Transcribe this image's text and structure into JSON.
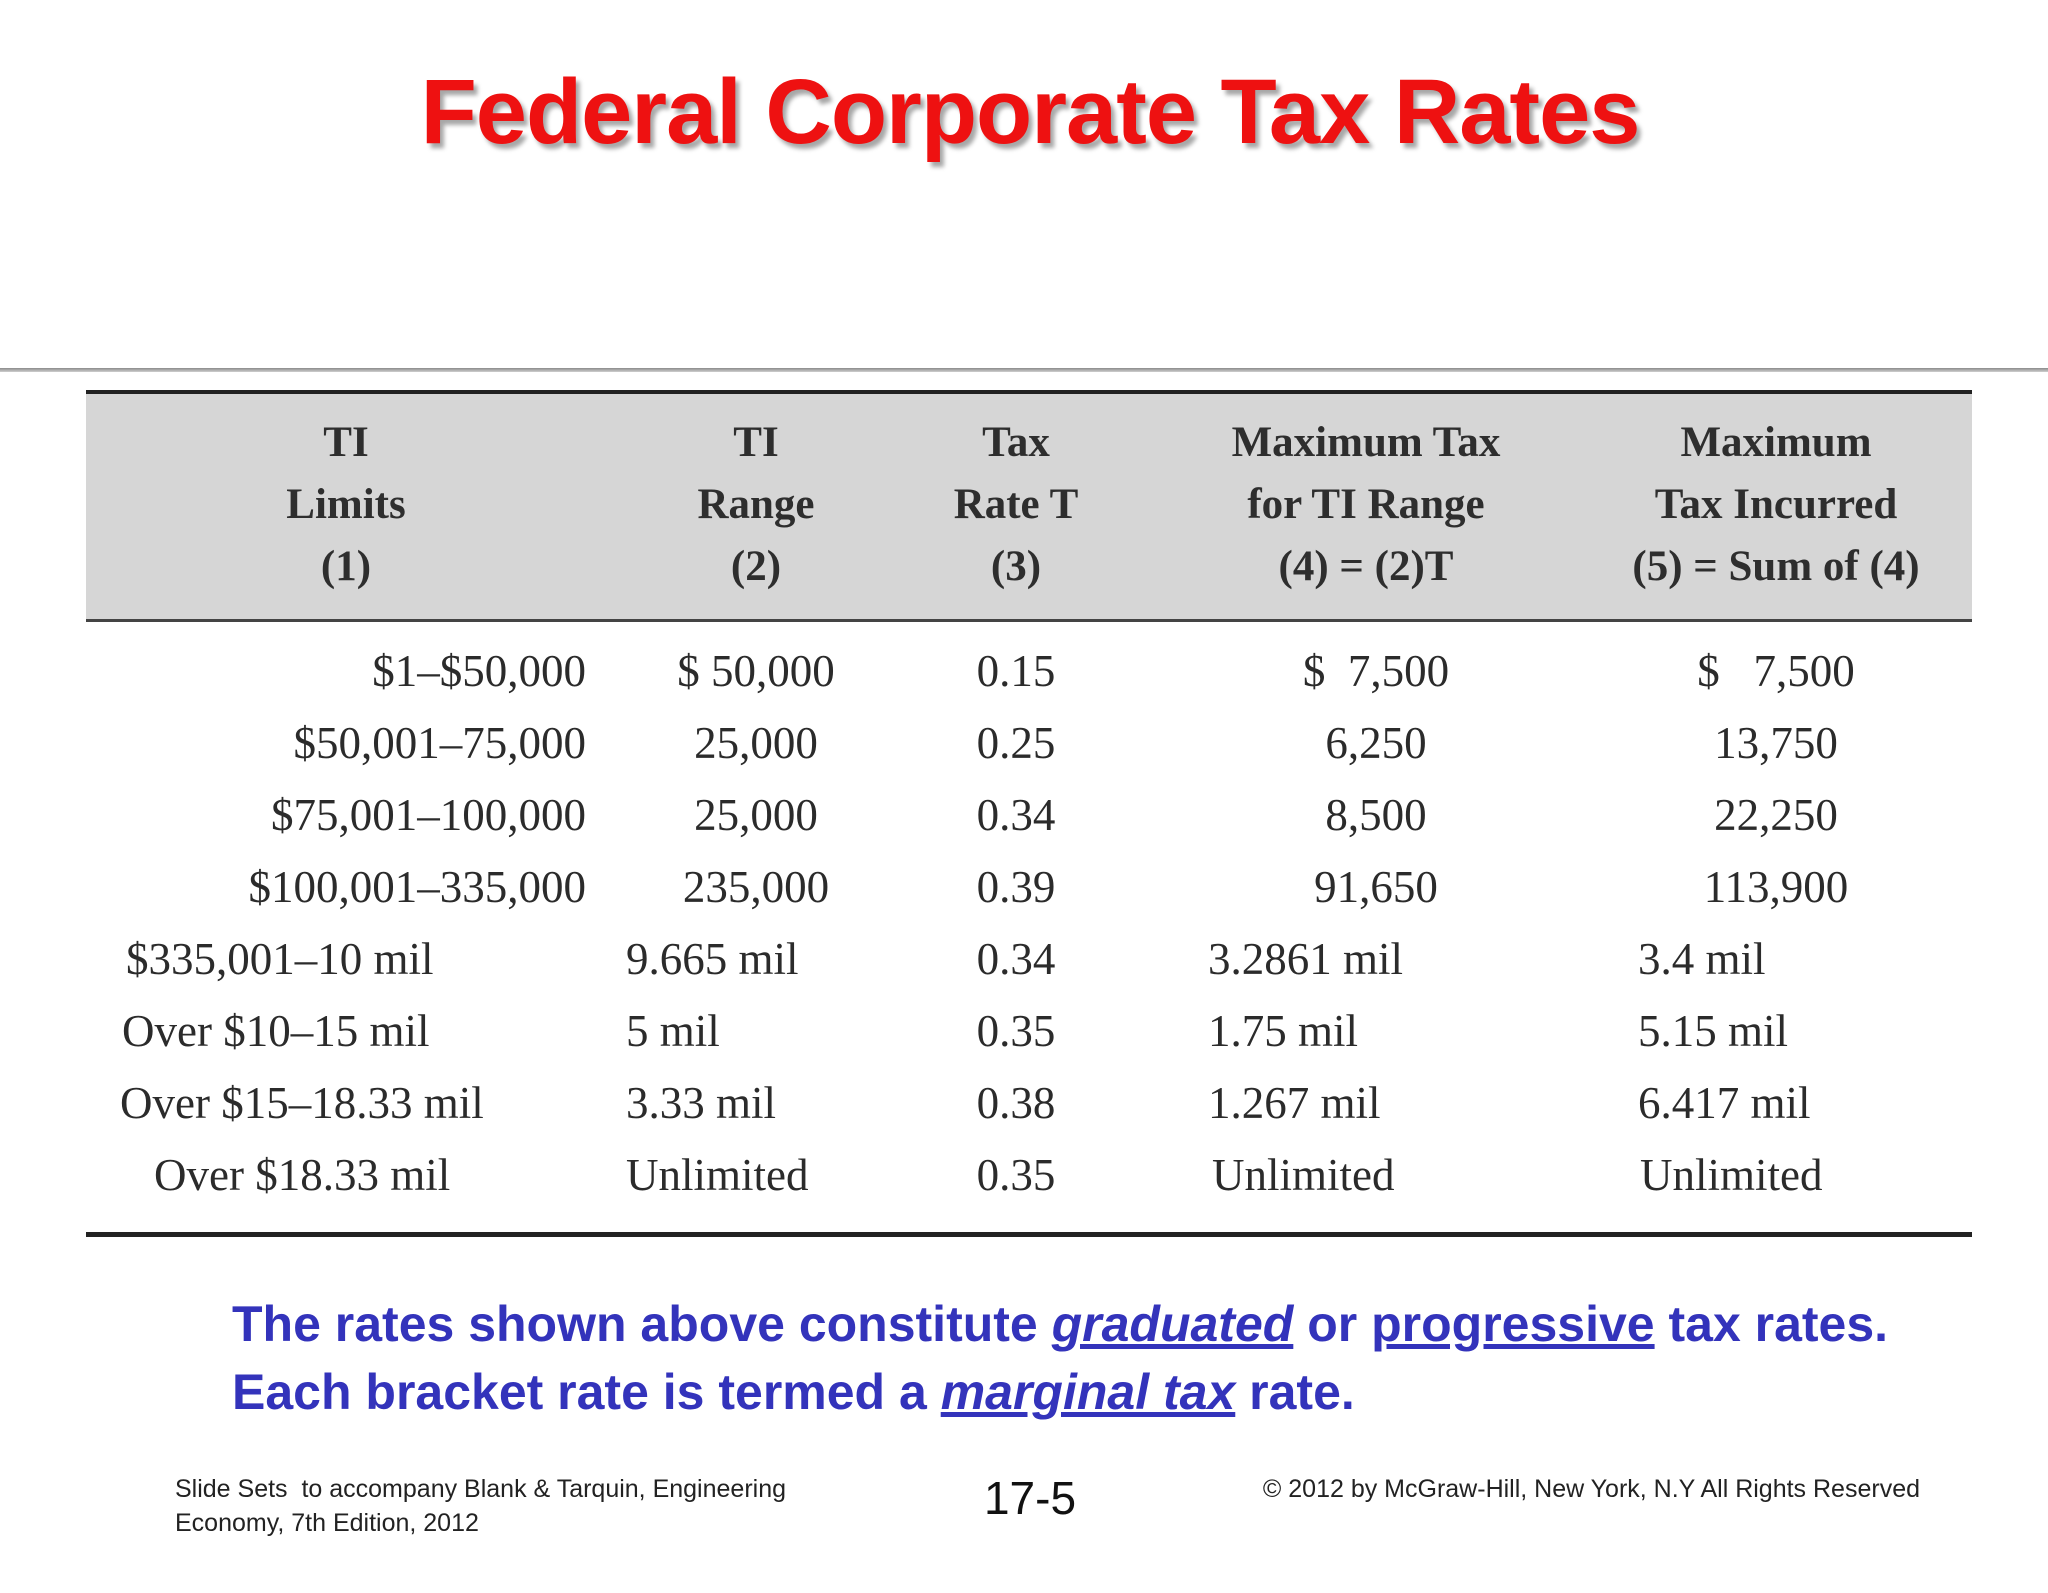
{
  "title": "Federal Corporate Tax Rates",
  "table": {
    "headers": [
      [
        "TI",
        "Limits",
        "(1)"
      ],
      [
        "TI",
        "Range",
        "(2)"
      ],
      [
        "Tax",
        "Rate T",
        "(3)"
      ],
      [
        "Maximum Tax",
        "for TI Range",
        "(4) = (2)T"
      ],
      [
        "Maximum",
        "Tax Incurred",
        "(5) = Sum of (4)"
      ]
    ],
    "rows": [
      [
        "$1–$50,000",
        "$ 50,000",
        "0.15",
        "$  7,500",
        "$   7,500"
      ],
      [
        "$50,001–75,000",
        "25,000",
        "0.25",
        "6,250",
        "13,750"
      ],
      [
        "$75,001–100,000",
        "25,000",
        "0.34",
        "8,500",
        "22,250"
      ],
      [
        "$100,001–335,000",
        "235,000",
        "0.39",
        "91,650",
        "113,900"
      ],
      [
        "$335,001–10 mil",
        "9.665 mil",
        "0.34",
        "3.2861 mil",
        "3.4 mil"
      ],
      [
        "Over $10–15 mil",
        "5 mil",
        "0.35",
        "1.75 mil",
        "5.15 mil"
      ],
      [
        "Over $15–18.33 mil",
        "3.33 mil",
        "0.38",
        "1.267 mil",
        "6.417 mil"
      ],
      [
        "Over $18.33 mil",
        "Unlimited",
        "0.35",
        "Unlimited",
        "Unlimited"
      ]
    ]
  },
  "note": {
    "line1_a": "The rates shown above constitute ",
    "line1_graduated": "graduated",
    "line1_or": " or ",
    "line1_progressive": "progressive",
    "line1_b": " tax rates.",
    "line2_a": "Each bracket rate is termed a ",
    "line2_marginal": "marginal tax",
    "line2_b": " rate."
  },
  "footer": {
    "left_line1": "Slide Sets  to accompany Blank & Tarquin, Engineering",
    "left_line2": "Economy, 7th Edition, 2012",
    "page": "17-5",
    "right": "© 2012 by McGraw-Hill, New York, N.Y All Rights Reserved"
  },
  "colors": {
    "title": "#ee1111",
    "note": "#3333bb",
    "header_bg": "#d6d6d6"
  }
}
